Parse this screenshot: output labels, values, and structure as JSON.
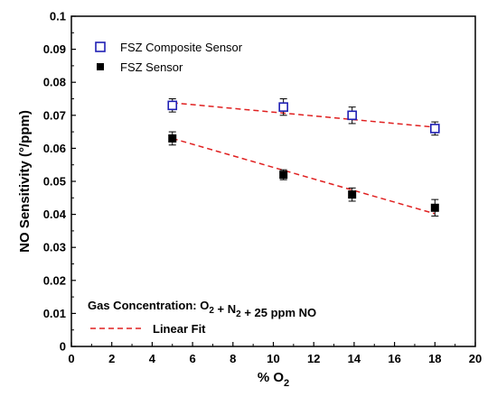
{
  "chart_data": {
    "type": "scatter",
    "xlabel": "% O",
    "xlabel_sub": "2",
    "ylabel": "NO Sensitivity (°/ppm)",
    "xlim": [
      0,
      20
    ],
    "ylim": [
      0,
      0.1
    ],
    "xticks": [
      "0",
      "2",
      "4",
      "6",
      "8",
      "10",
      "12",
      "14",
      "16",
      "18",
      "20"
    ],
    "yticks": [
      "0",
      "0.01",
      "0.02",
      "0.03",
      "0.04",
      "0.05",
      "0.06",
      "0.07",
      "0.08",
      "0.09",
      "0.1"
    ],
    "grid": false,
    "legend_position": "top-left",
    "series": [
      {
        "name": "FSZ Composite Sensor",
        "marker": "open-square",
        "color": "#1f1fb4",
        "x": [
          5,
          10.5,
          13.9,
          18
        ],
        "y": [
          0.073,
          0.0725,
          0.07,
          0.066
        ],
        "error": [
          0.002,
          0.0025,
          0.0025,
          0.002
        ]
      },
      {
        "name": "FSZ Sensor",
        "marker": "filled-square",
        "color": "#000000",
        "x": [
          5,
          10.5,
          13.9,
          18
        ],
        "y": [
          0.063,
          0.052,
          0.046,
          0.042
        ],
        "error": [
          0.002,
          0.0015,
          0.002,
          0.0025
        ]
      }
    ],
    "fits": [
      {
        "color": "#e02020",
        "x": [
          5,
          18
        ],
        "y": [
          0.0738,
          0.0664
        ]
      },
      {
        "color": "#e02020",
        "x": [
          5,
          18
        ],
        "y": [
          0.063,
          0.0402
        ]
      }
    ],
    "annotation": {
      "prefix": "Gas Concentration:",
      "parts": [
        {
          "text": "O",
          "sub": "2"
        },
        {
          "text": " + N",
          "sub": "2"
        },
        {
          "text": " + 25 ppm NO",
          "sub": ""
        }
      ]
    },
    "fit_legend": {
      "label": "Linear Fit",
      "color": "#e02020"
    }
  }
}
